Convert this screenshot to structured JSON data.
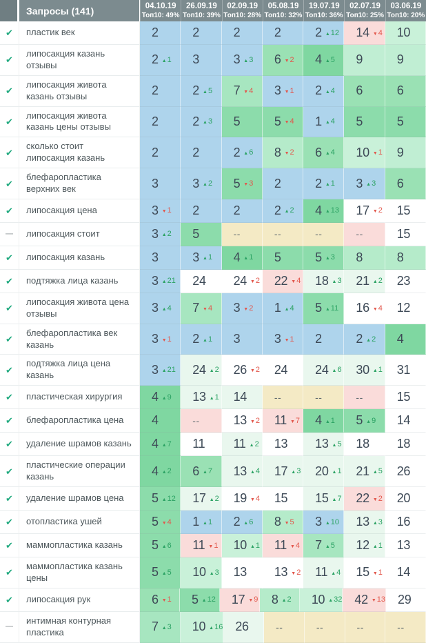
{
  "header": {
    "queries_label": "Запросы (141)",
    "columns": [
      {
        "date": "04.10.19",
        "top10": "Топ10: 49%"
      },
      {
        "date": "26.09.19",
        "top10": "Топ10: 39%"
      },
      {
        "date": "02.09.19",
        "top10": "Топ10: 28%"
      },
      {
        "date": "05.08.19",
        "top10": "Топ10: 32%"
      },
      {
        "date": "19.07.19",
        "top10": "Топ10: 36%"
      },
      {
        "date": "02.07.19",
        "top10": "Топ10: 25%"
      },
      {
        "date": "03.06.19",
        "top10": "Топ10: 20%"
      }
    ]
  },
  "icons": {
    "check": "✔",
    "dash": "—"
  },
  "palette": {
    "blue": "#aed4ec",
    "g4": "#7fd7a1",
    "g5": "#8cdcab",
    "g6": "#9ae1b4",
    "g7": "#a7e6c0",
    "g8": "#b5ebca",
    "g9": "#c0eed3",
    "g10": "#c9f1d9",
    "tint": "#e9f7ee",
    "tan": "#f4eac5",
    "pink": "#fadcda",
    "white": "#ffffff",
    "up": "#2ba263",
    "down": "#e2574c",
    "header_bg": "#7c8b8f",
    "check": "#1fa97e"
  },
  "rows": [
    {
      "status": "check",
      "query": "пластик век",
      "cells": [
        {
          "value": "2",
          "bg": "blue"
        },
        {
          "value": "2",
          "bg": "blue"
        },
        {
          "value": "2",
          "bg": "blue"
        },
        {
          "value": "2",
          "bg": "blue"
        },
        {
          "value": "2",
          "change": "12",
          "dir": "up",
          "bg": "blue"
        },
        {
          "value": "14",
          "change": "4",
          "dir": "down",
          "bg": "pink"
        },
        {
          "value": "10",
          "bg": "g10"
        }
      ]
    },
    {
      "status": "check",
      "query": "липосакция казань отзывы",
      "cells": [
        {
          "value": "2",
          "change": "1",
          "dir": "up",
          "bg": "blue"
        },
        {
          "value": "3",
          "bg": "blue"
        },
        {
          "value": "3",
          "change": "3",
          "dir": "up",
          "bg": "blue"
        },
        {
          "value": "6",
          "change": "2",
          "dir": "down",
          "bg": "g6"
        },
        {
          "value": "4",
          "change": "5",
          "dir": "up",
          "bg": "g4"
        },
        {
          "value": "9",
          "bg": "g9"
        },
        {
          "value": "9",
          "bg": "g9"
        }
      ]
    },
    {
      "status": "check",
      "query": "липосакция живота казань отзывы",
      "cells": [
        {
          "value": "2",
          "bg": "blue"
        },
        {
          "value": "2",
          "change": "5",
          "dir": "up",
          "bg": "blue"
        },
        {
          "value": "7",
          "change": "4",
          "dir": "down",
          "bg": "g7"
        },
        {
          "value": "3",
          "change": "1",
          "dir": "down",
          "bg": "blue"
        },
        {
          "value": "2",
          "change": "4",
          "dir": "up",
          "bg": "blue"
        },
        {
          "value": "6",
          "bg": "g6"
        },
        {
          "value": "6",
          "bg": "g6"
        }
      ]
    },
    {
      "status": "check",
      "query": "липосакция живота казань цены отзывы",
      "cells": [
        {
          "value": "2",
          "bg": "blue"
        },
        {
          "value": "2",
          "change": "3",
          "dir": "up",
          "bg": "blue"
        },
        {
          "value": "5",
          "bg": "g5"
        },
        {
          "value": "5",
          "change": "4",
          "dir": "down",
          "bg": "g5"
        },
        {
          "value": "1",
          "change": "4",
          "dir": "up",
          "bg": "blue"
        },
        {
          "value": "5",
          "bg": "g5"
        },
        {
          "value": "5",
          "bg": "g5"
        }
      ]
    },
    {
      "status": "check",
      "query": "сколько стоит липосакция казань",
      "cells": [
        {
          "value": "2",
          "bg": "blue"
        },
        {
          "value": "2",
          "bg": "blue"
        },
        {
          "value": "2",
          "change": "6",
          "dir": "up",
          "bg": "blue"
        },
        {
          "value": "8",
          "change": "2",
          "dir": "down",
          "bg": "g8"
        },
        {
          "value": "6",
          "change": "4",
          "dir": "up",
          "bg": "g6"
        },
        {
          "value": "10",
          "change": "1",
          "dir": "down",
          "bg": "g10"
        },
        {
          "value": "9",
          "bg": "g9"
        }
      ]
    },
    {
      "status": "check",
      "query": "блефаропластика верхних век",
      "cells": [
        {
          "value": "3",
          "bg": "blue"
        },
        {
          "value": "3",
          "change": "2",
          "dir": "up",
          "bg": "blue"
        },
        {
          "value": "5",
          "change": "3",
          "dir": "down",
          "bg": "g5"
        },
        {
          "value": "2",
          "bg": "blue"
        },
        {
          "value": "2",
          "change": "1",
          "dir": "up",
          "bg": "blue"
        },
        {
          "value": "3",
          "change": "3",
          "dir": "up",
          "bg": "blue"
        },
        {
          "value": "6",
          "bg": "g6"
        }
      ]
    },
    {
      "status": "check",
      "query": "липосакция цена",
      "cells": [
        {
          "value": "3",
          "change": "1",
          "dir": "down",
          "bg": "blue"
        },
        {
          "value": "2",
          "bg": "blue"
        },
        {
          "value": "2",
          "bg": "blue"
        },
        {
          "value": "2",
          "change": "2",
          "dir": "up",
          "bg": "blue"
        },
        {
          "value": "4",
          "change": "13",
          "dir": "up",
          "bg": "g4"
        },
        {
          "value": "17",
          "change": "2",
          "dir": "down",
          "bg": "white"
        },
        {
          "value": "15",
          "bg": "white"
        }
      ]
    },
    {
      "status": "dash",
      "query": "липосакция стоит",
      "cells": [
        {
          "value": "3",
          "change": "2",
          "dir": "up",
          "bg": "blue"
        },
        {
          "value": "5",
          "bg": "g5"
        },
        {
          "value": "--",
          "bg": "tan"
        },
        {
          "value": "--",
          "bg": "tan"
        },
        {
          "value": "--",
          "bg": "tan"
        },
        {
          "value": "--",
          "bg": "pink"
        },
        {
          "value": "15",
          "bg": "white"
        }
      ]
    },
    {
      "status": "check",
      "query": "липосакция казань",
      "cells": [
        {
          "value": "3",
          "bg": "blue"
        },
        {
          "value": "3",
          "change": "1",
          "dir": "up",
          "bg": "blue"
        },
        {
          "value": "4",
          "change": "1",
          "dir": "up",
          "bg": "g4"
        },
        {
          "value": "5",
          "bg": "g5"
        },
        {
          "value": "5",
          "change": "3",
          "dir": "up",
          "bg": "g5"
        },
        {
          "value": "8",
          "bg": "g8"
        },
        {
          "value": "8",
          "bg": "g8"
        }
      ]
    },
    {
      "status": "check",
      "query": "подтяжка лица казань",
      "cells": [
        {
          "value": "3",
          "change": "21",
          "dir": "up",
          "bg": "blue"
        },
        {
          "value": "24",
          "bg": "white"
        },
        {
          "value": "24",
          "change": "2",
          "dir": "down",
          "bg": "white"
        },
        {
          "value": "22",
          "change": "4",
          "dir": "down",
          "bg": "pink"
        },
        {
          "value": "18",
          "change": "3",
          "dir": "up",
          "bg": "tint"
        },
        {
          "value": "21",
          "change": "2",
          "dir": "up",
          "bg": "tint"
        },
        {
          "value": "23",
          "bg": "white"
        }
      ]
    },
    {
      "status": "check",
      "query": "липосакция живота цена отзывы",
      "cells": [
        {
          "value": "3",
          "change": "4",
          "dir": "up",
          "bg": "blue"
        },
        {
          "value": "7",
          "change": "4",
          "dir": "down",
          "bg": "g7"
        },
        {
          "value": "3",
          "change": "2",
          "dir": "down",
          "bg": "blue"
        },
        {
          "value": "1",
          "change": "4",
          "dir": "up",
          "bg": "blue"
        },
        {
          "value": "5",
          "change": "11",
          "dir": "up",
          "bg": "g5"
        },
        {
          "value": "16",
          "change": "4",
          "dir": "down",
          "bg": "white"
        },
        {
          "value": "12",
          "bg": "white"
        }
      ]
    },
    {
      "status": "check",
      "query": "блефаропластика век казань",
      "cells": [
        {
          "value": "3",
          "change": "1",
          "dir": "down",
          "bg": "blue"
        },
        {
          "value": "2",
          "change": "1",
          "dir": "up",
          "bg": "blue"
        },
        {
          "value": "3",
          "bg": "blue"
        },
        {
          "value": "3",
          "change": "1",
          "dir": "down",
          "bg": "blue"
        },
        {
          "value": "2",
          "bg": "blue"
        },
        {
          "value": "2",
          "change": "2",
          "dir": "up",
          "bg": "blue"
        },
        {
          "value": "4",
          "bg": "g4"
        }
      ]
    },
    {
      "status": "check",
      "query": "подтяжка лица цена казань",
      "cells": [
        {
          "value": "3",
          "change": "21",
          "dir": "up",
          "bg": "blue"
        },
        {
          "value": "24",
          "change": "2",
          "dir": "up",
          "bg": "tint"
        },
        {
          "value": "26",
          "change": "2",
          "dir": "down",
          "bg": "white"
        },
        {
          "value": "24",
          "bg": "white"
        },
        {
          "value": "24",
          "change": "6",
          "dir": "up",
          "bg": "tint"
        },
        {
          "value": "30",
          "change": "1",
          "dir": "up",
          "bg": "tint"
        },
        {
          "value": "31",
          "bg": "white"
        }
      ]
    },
    {
      "status": "check",
      "query": "пластическая хирургия",
      "cells": [
        {
          "value": "4",
          "change": "9",
          "dir": "up",
          "bg": "g4"
        },
        {
          "value": "13",
          "change": "1",
          "dir": "up",
          "bg": "tint"
        },
        {
          "value": "14",
          "bg": "tint"
        },
        {
          "value": "--",
          "bg": "tan"
        },
        {
          "value": "--",
          "bg": "tan"
        },
        {
          "value": "--",
          "bg": "pink"
        },
        {
          "value": "15",
          "bg": "white"
        }
      ]
    },
    {
      "status": "check",
      "query": "блефаропластика цена",
      "cells": [
        {
          "value": "4",
          "bg": "g4"
        },
        {
          "value": "--",
          "bg": "pink"
        },
        {
          "value": "13",
          "change": "2",
          "dir": "down",
          "bg": "white"
        },
        {
          "value": "11",
          "change": "7",
          "dir": "down",
          "bg": "pink"
        },
        {
          "value": "4",
          "change": "1",
          "dir": "up",
          "bg": "g4"
        },
        {
          "value": "5",
          "change": "9",
          "dir": "up",
          "bg": "g5"
        },
        {
          "value": "14",
          "bg": "white"
        }
      ]
    },
    {
      "status": "check",
      "query": "удаление шрамов казань",
      "cells": [
        {
          "value": "4",
          "change": "7",
          "dir": "up",
          "bg": "g4"
        },
        {
          "value": "11",
          "bg": "white"
        },
        {
          "value": "11",
          "change": "2",
          "dir": "up",
          "bg": "tint"
        },
        {
          "value": "13",
          "bg": "white"
        },
        {
          "value": "13",
          "change": "5",
          "dir": "up",
          "bg": "tint"
        },
        {
          "value": "18",
          "bg": "white"
        },
        {
          "value": "18",
          "bg": "white"
        }
      ]
    },
    {
      "status": "check",
      "query": "пластические операции казань",
      "cells": [
        {
          "value": "4",
          "change": "2",
          "dir": "up",
          "bg": "g4"
        },
        {
          "value": "6",
          "change": "7",
          "dir": "up",
          "bg": "g6"
        },
        {
          "value": "13",
          "change": "4",
          "dir": "up",
          "bg": "tint"
        },
        {
          "value": "17",
          "change": "3",
          "dir": "up",
          "bg": "tint"
        },
        {
          "value": "20",
          "change": "1",
          "dir": "up",
          "bg": "tint"
        },
        {
          "value": "21",
          "change": "5",
          "dir": "up",
          "bg": "tint"
        },
        {
          "value": "26",
          "bg": "white"
        }
      ]
    },
    {
      "status": "check",
      "query": "удаление шрамов цена",
      "cells": [
        {
          "value": "5",
          "change": "12",
          "dir": "up",
          "bg": "g5"
        },
        {
          "value": "17",
          "change": "2",
          "dir": "up",
          "bg": "tint"
        },
        {
          "value": "19",
          "change": "4",
          "dir": "down",
          "bg": "white"
        },
        {
          "value": "15",
          "bg": "white"
        },
        {
          "value": "15",
          "change": "7",
          "dir": "up",
          "bg": "tint"
        },
        {
          "value": "22",
          "change": "2",
          "dir": "down",
          "bg": "pink"
        },
        {
          "value": "20",
          "bg": "white"
        }
      ]
    },
    {
      "status": "check",
      "query": "отопластика ушей",
      "cells": [
        {
          "value": "5",
          "change": "4",
          "dir": "down",
          "bg": "g5"
        },
        {
          "value": "1",
          "change": "1",
          "dir": "up",
          "bg": "blue"
        },
        {
          "value": "2",
          "change": "6",
          "dir": "up",
          "bg": "blue"
        },
        {
          "value": "8",
          "change": "5",
          "dir": "down",
          "bg": "g8"
        },
        {
          "value": "3",
          "change": "10",
          "dir": "up",
          "bg": "blue"
        },
        {
          "value": "13",
          "change": "3",
          "dir": "up",
          "bg": "tint"
        },
        {
          "value": "16",
          "bg": "white"
        }
      ]
    },
    {
      "status": "check",
      "query": "маммопластика казань",
      "cells": [
        {
          "value": "5",
          "change": "6",
          "dir": "up",
          "bg": "g5"
        },
        {
          "value": "11",
          "change": "1",
          "dir": "down",
          "bg": "pink"
        },
        {
          "value": "10",
          "change": "1",
          "dir": "up",
          "bg": "g10"
        },
        {
          "value": "11",
          "change": "4",
          "dir": "down",
          "bg": "pink"
        },
        {
          "value": "7",
          "change": "5",
          "dir": "up",
          "bg": "g7"
        },
        {
          "value": "12",
          "change": "1",
          "dir": "up",
          "bg": "tint"
        },
        {
          "value": "13",
          "bg": "white"
        }
      ]
    },
    {
      "status": "check",
      "query": "маммопластика казань цены",
      "cells": [
        {
          "value": "5",
          "change": "5",
          "dir": "up",
          "bg": "g5"
        },
        {
          "value": "10",
          "change": "3",
          "dir": "up",
          "bg": "g10"
        },
        {
          "value": "13",
          "bg": "white"
        },
        {
          "value": "13",
          "change": "2",
          "dir": "down",
          "bg": "white"
        },
        {
          "value": "11",
          "change": "4",
          "dir": "up",
          "bg": "tint"
        },
        {
          "value": "15",
          "change": "1",
          "dir": "down",
          "bg": "white"
        },
        {
          "value": "14",
          "bg": "white"
        }
      ]
    },
    {
      "status": "check",
      "query": "липосакция рук",
      "cells": [
        {
          "value": "6",
          "change": "1",
          "dir": "down",
          "bg": "g6"
        },
        {
          "value": "5",
          "change": "12",
          "dir": "up",
          "bg": "g5"
        },
        {
          "value": "17",
          "change": "9",
          "dir": "down",
          "bg": "pink"
        },
        {
          "value": "8",
          "change": "2",
          "dir": "up",
          "bg": "g8"
        },
        {
          "value": "10",
          "change": "32",
          "dir": "up",
          "bg": "g10"
        },
        {
          "value": "42",
          "change": "13",
          "dir": "down",
          "bg": "pink"
        },
        {
          "value": "29",
          "bg": "white"
        }
      ]
    },
    {
      "status": "dash",
      "query": "интимная контурная пластика",
      "cells": [
        {
          "value": "7",
          "change": "3",
          "dir": "up",
          "bg": "g7"
        },
        {
          "value": "10",
          "change": "16",
          "dir": "up",
          "bg": "g10"
        },
        {
          "value": "26",
          "bg": "tint"
        },
        {
          "value": "--",
          "bg": "tan"
        },
        {
          "value": "--",
          "bg": "tan"
        },
        {
          "value": "--",
          "bg": "tan"
        },
        {
          "value": "--",
          "bg": "tan"
        }
      ]
    }
  ]
}
